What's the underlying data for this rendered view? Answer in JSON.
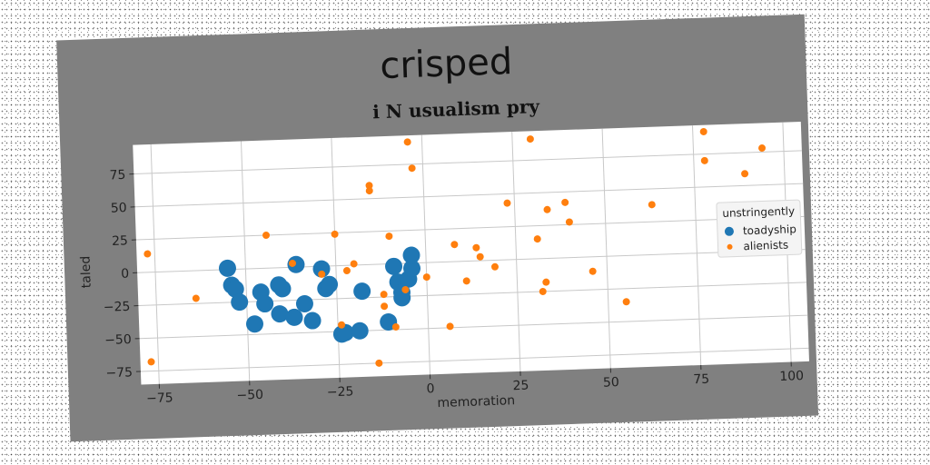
{
  "figure_title": "crisped",
  "colors": {
    "panel": "#808080",
    "plot_bg": "#ffffff",
    "grid": "#c8c8c8",
    "series_1": "#1f77b4",
    "series_2": "#ff7f0e"
  },
  "chart_data": {
    "type": "scatter",
    "title": "i N usualism pry",
    "xlabel": "memoration",
    "ylabel": "taled",
    "xlim": [
      -80,
      105
    ],
    "ylim": [
      -85,
      97
    ],
    "xticks": [
      -75,
      -50,
      -25,
      0,
      25,
      50,
      75,
      100
    ],
    "yticks": [
      -75,
      -50,
      -25,
      0,
      25,
      50,
      75
    ],
    "xtick_labels": [
      "−75",
      "−50",
      "−25",
      "0",
      "25",
      "50",
      "75",
      "100"
    ],
    "ytick_labels": [
      "−75",
      "−50",
      "−25",
      "0",
      "25",
      "50",
      "75"
    ],
    "grid": true,
    "legend": {
      "title": "unstringently",
      "placement": "right"
    },
    "series": [
      {
        "name": "toadyship",
        "color": "#1f77b4",
        "marker": "large-circle",
        "x": [
          -55,
          -54,
          -53,
          -52,
          -48,
          -46,
          -45,
          -41,
          -41,
          -40,
          -37,
          -36,
          -34,
          -32,
          -29,
          -28,
          -27,
          -24,
          -23,
          -19,
          -18,
          -11,
          -9,
          -8,
          -7,
          -7,
          -5,
          -4,
          -4
        ],
        "y": [
          1,
          -12,
          -15,
          -25,
          -42,
          -18,
          -27,
          -35,
          -13,
          -16,
          -38,
          2,
          -28,
          -41,
          -2,
          -17,
          -14,
          -52,
          -51,
          -50,
          -20,
          -44,
          -2,
          -14,
          -26,
          -22,
          -12,
          -4,
          6
        ]
      },
      {
        "name": "alienists",
        "color": "#ff7f0e",
        "marker": "small-circle",
        "x": [
          -77,
          -77,
          -64,
          -44,
          -37,
          -29,
          -25,
          -24,
          -22,
          -20,
          -15,
          -15,
          -14,
          -12,
          -12,
          -10,
          -9,
          -6,
          -4,
          -3,
          0,
          6,
          8,
          11,
          14,
          15,
          19,
          23,
          30,
          31,
          32,
          33,
          34,
          39,
          40,
          46,
          55,
          63,
          78,
          78,
          89,
          94
        ],
        "y": [
          -68,
          14,
          -21,
          25,
          3,
          -6,
          24,
          -45,
          -4,
          1,
          60,
          56,
          -75,
          -23,
          -32,
          21,
          -48,
          -20,
          92,
          72,
          -11,
          -49,
          13,
          -15,
          10,
          3,
          -5,
          43,
          91,
          15,
          -25,
          -18,
          37,
          42,
          27,
          -11,
          -35,
          38,
          92,
          70,
          59,
          78
        ]
      }
    ]
  }
}
